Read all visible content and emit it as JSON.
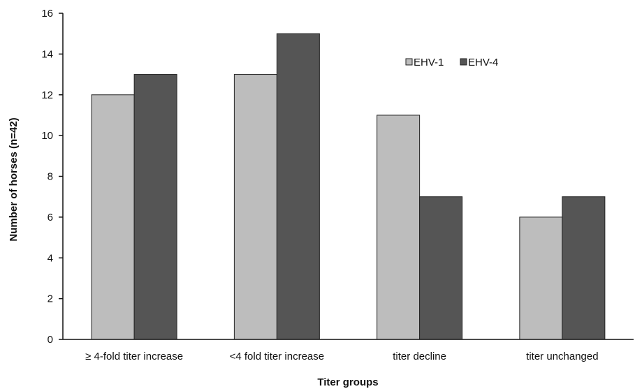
{
  "chart_data": {
    "type": "bar",
    "title": "",
    "xlabel": "Titer groups",
    "ylabel": "Number of horses (n=42)",
    "ylim": [
      0,
      16
    ],
    "yticks": [
      0,
      2,
      4,
      6,
      8,
      10,
      12,
      14,
      16
    ],
    "grid": false,
    "legend_position": "top-right",
    "categories": [
      "≥ 4-fold titer increase",
      "<4 fold titer increase",
      "titer decline",
      "titer unchanged"
    ],
    "series": [
      {
        "name": "EHV-1",
        "color": "#bdbdbd",
        "values": [
          12,
          13,
          11,
          6
        ]
      },
      {
        "name": "EHV-4",
        "color": "#555555",
        "values": [
          13,
          15,
          7,
          7
        ]
      }
    ]
  }
}
